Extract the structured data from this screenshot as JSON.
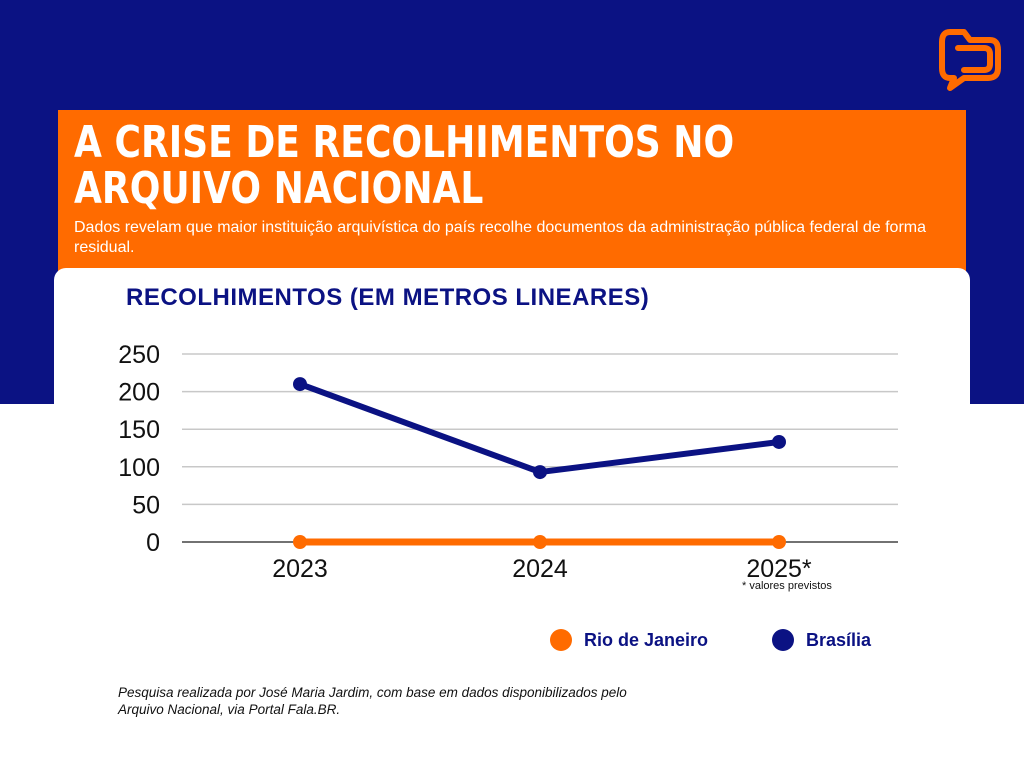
{
  "header": {
    "title_line1": "A CRISE DE RECOLHIMENTOS NO",
    "title_line2": "ARQUIVO NACIONAL",
    "subtitle": "Dados revelam que maior instituição arquivística do país recolhe documentos da administração pública federal de forma residual."
  },
  "logo": {
    "icon": "chat-folder-icon",
    "color": "#ff6b00"
  },
  "colors": {
    "background_top": "#0b1283",
    "accent": "#ff6b00",
    "navy": "#0b1283"
  },
  "chart_data": {
    "type": "line",
    "title": "RECOLHIMENTOS (EM METROS LINEARES)",
    "categories": [
      "2023",
      "2024",
      "2025*"
    ],
    "series": [
      {
        "name": "Rio de Janeiro",
        "color": "#ff6b00",
        "values": [
          0,
          0,
          0
        ]
      },
      {
        "name": "Brasília",
        "color": "#0b1283",
        "values": [
          210,
          93,
          133
        ]
      }
    ],
    "yticks": [
      "0",
      "50",
      "100",
      "150",
      "200",
      "250"
    ],
    "ylim": [
      0,
      250
    ],
    "grid": true,
    "legend": "bottom-right",
    "note": "* valores previstos"
  },
  "source": "Pesquisa realizada por José Maria Jardim, com base em dados disponibilizados pelo Arquivo Nacional, via Portal Fala.BR."
}
